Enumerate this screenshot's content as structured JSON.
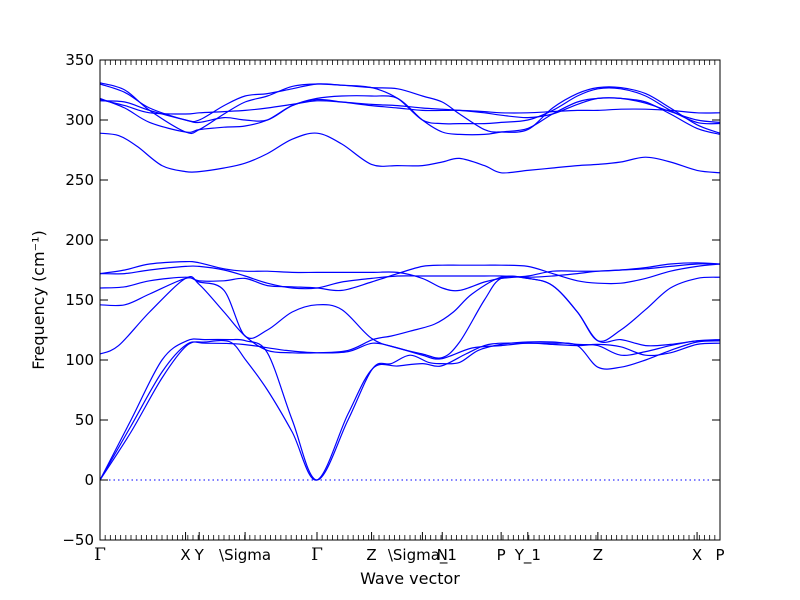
{
  "chart_data": {
    "type": "line",
    "xlabel": "Wave vector",
    "ylabel": "Frequency (cm⁻¹)",
    "ylim": [
      -50,
      350
    ],
    "yticks": [
      -50,
      0,
      50,
      100,
      150,
      200,
      250,
      300,
      350
    ],
    "xlim": [
      0,
      100
    ],
    "xtick_labels": [
      {
        "label": "Γ",
        "x": 0
      },
      {
        "label": "X",
        "x": 13.8
      },
      {
        "label": "Y",
        "x": 16.0
      },
      {
        "label": "\\Sigma",
        "x": 23.4
      },
      {
        "label": "Γ",
        "x": 35.0
      },
      {
        "label": "Z",
        "x": 43.8
      },
      {
        "label": "\\Sigma_1",
        "x": 52.0
      },
      {
        "label": "N",
        "x": 55.2
      },
      {
        "label": "P",
        "x": 64.7
      },
      {
        "label": "Y_1",
        "x": 69.0
      },
      {
        "label": "Z",
        "x": 80.3
      },
      {
        "label": "X",
        "x": 96.3
      },
      {
        "label": "P",
        "x": 100
      }
    ],
    "zero_line": true,
    "series_color": "#0000ff",
    "series": [
      {
        "x": [
          0,
          5,
          10,
          14,
          17,
          23,
          30,
          35,
          40,
          44,
          48,
          52,
          55,
          60,
          64.7,
          69,
          73,
          77,
          80.3,
          84,
          88,
          92,
          96.3,
          100
        ],
        "values": [
          0,
          45,
          90,
          113,
          114,
          113,
          108,
          106,
          107,
          114,
          110,
          104,
          101,
          110,
          112,
          114,
          113,
          112,
          113,
          111,
          104,
          106,
          113,
          114
        ]
      },
      {
        "x": [
          0,
          5,
          10,
          14,
          17,
          21,
          23.5,
          27,
          31,
          35,
          40,
          44,
          47,
          50,
          53,
          55,
          58,
          61,
          64.7,
          69,
          73,
          77,
          80.3,
          84,
          88,
          92,
          96.3,
          100
        ],
        "values": [
          0,
          50,
          100,
          116,
          117,
          117,
          116,
          106,
          50,
          0,
          50,
          93,
          97,
          104,
          98,
          97,
          98,
          108,
          113,
          115,
          115,
          113,
          112,
          104,
          107,
          112,
          116,
          116
        ]
      },
      {
        "x": [
          0,
          5,
          10,
          14,
          17,
          21,
          23.5,
          27,
          31,
          35,
          40,
          44,
          48,
          52,
          55,
          59,
          62,
          64.7,
          69,
          73,
          77,
          80.3,
          84,
          88,
          92,
          96.3,
          100
        ],
        "values": [
          0,
          40,
          85,
          112,
          115,
          115,
          100,
          75,
          40,
          0,
          55,
          93,
          95,
          97,
          95,
          105,
          112,
          114,
          114,
          114,
          112,
          94,
          94,
          100,
          108,
          115,
          116
        ]
      },
      {
        "x": [
          0,
          3,
          8,
          13.8,
          16,
          20,
          23.4,
          27,
          31,
          35,
          40,
          44,
          47,
          50,
          54,
          57,
          60,
          64.7,
          69,
          73,
          77,
          80.3,
          84,
          88,
          92,
          96.3,
          100
        ],
        "values": [
          105,
          112,
          140,
          168,
          163,
          140,
          120,
          108,
          106,
          106,
          108,
          117,
          120,
          124,
          130,
          140,
          155,
          169,
          168,
          162,
          140,
          116,
          117,
          112,
          113,
          116,
          117
        ]
      },
      {
        "x": [
          0,
          4,
          8,
          13.8,
          16,
          20,
          23.4,
          27,
          31,
          35,
          39,
          43.8,
          48,
          52,
          55.2,
          58,
          62,
          64.7,
          69,
          73,
          77,
          80.3,
          84,
          88,
          92,
          96.3,
          100
        ],
        "values": [
          146,
          146,
          155,
          168,
          165,
          158,
          120,
          125,
          140,
          146,
          142,
          118,
          110,
          105,
          102,
          115,
          150,
          168,
          168,
          162,
          140,
          116,
          125,
          142,
          160,
          168,
          169
        ]
      },
      {
        "x": [
          0,
          4,
          8,
          13.8,
          16,
          20,
          23.4,
          27,
          31,
          35,
          39,
          43.8,
          48,
          52,
          55.2,
          58,
          62,
          64.7,
          69,
          73,
          77,
          80.3,
          84,
          88,
          92,
          96.3,
          100
        ],
        "values": [
          160,
          161,
          166,
          169,
          166,
          166,
          168,
          162,
          161,
          160,
          158,
          165,
          172,
          178,
          179,
          179,
          179,
          179,
          178,
          172,
          166,
          164,
          164,
          168,
          174,
          178,
          180
        ]
      },
      {
        "x": [
          0,
          4,
          8,
          13.8,
          16,
          20,
          23.4,
          27,
          31,
          35,
          39,
          43.8,
          48,
          52,
          55.2,
          58,
          62,
          64.7,
          69,
          73,
          77,
          80.3,
          84,
          88,
          92,
          96.3,
          100
        ],
        "values": [
          172,
          175,
          180,
          182,
          181,
          176,
          174,
          174,
          173,
          173,
          173,
          173,
          173,
          168,
          160,
          158,
          165,
          168,
          170,
          174,
          174,
          174,
          175,
          177,
          180,
          181,
          180
        ]
      },
      {
        "x": [
          0,
          4,
          8,
          13.8,
          16,
          20,
          23.4,
          27,
          31,
          35,
          39,
          43.8,
          48,
          52,
          55.2,
          58,
          62,
          64.7,
          69,
          73,
          77,
          80.3,
          84,
          88,
          92,
          96.3,
          100
        ],
        "values": [
          172,
          172,
          175,
          178,
          178,
          175,
          170,
          164,
          160,
          160,
          165,
          168,
          170,
          170,
          170,
          170,
          170,
          170,
          169,
          170,
          172,
          174,
          175,
          176,
          178,
          180,
          180
        ]
      },
      {
        "x": [
          0,
          3,
          6,
          10,
          13.8,
          16,
          20,
          23.4,
          27,
          31,
          35,
          39,
          43.8,
          48,
          52,
          55.2,
          58,
          62,
          64.7,
          69,
          73,
          77,
          80.3,
          84,
          88,
          92,
          96.3,
          100
        ],
        "values": [
          289,
          287,
          278,
          262,
          257,
          257,
          260,
          264,
          272,
          284,
          289,
          280,
          263,
          262,
          262,
          265,
          268,
          262,
          256,
          258,
          260,
          262,
          263,
          265,
          269,
          265,
          258,
          256
        ]
      },
      {
        "x": [
          0,
          4,
          8,
          13.8,
          16,
          20,
          23.4,
          27,
          31,
          35,
          39,
          43.8,
          48,
          52,
          55.2,
          58,
          62,
          64.7,
          69,
          73,
          77,
          80.3,
          84,
          88,
          92,
          96.3,
          100
        ],
        "values": [
          318,
          310,
          298,
          290,
          292,
          294,
          295,
          300,
          312,
          317,
          315,
          312,
          310,
          308,
          308,
          308,
          307,
          306,
          306,
          307,
          308,
          308,
          309,
          309,
          308,
          306,
          306
        ]
      },
      {
        "x": [
          0,
          4,
          8,
          13.8,
          16,
          20,
          23.4,
          27,
          31,
          35,
          39,
          43.8,
          48,
          52,
          55.2,
          58,
          62,
          64.7,
          69,
          73,
          77,
          80.3,
          84,
          88,
          92,
          96.3,
          100
        ],
        "values": [
          317,
          312,
          306,
          305,
          306,
          307,
          308,
          310,
          313,
          316,
          315,
          313,
          312,
          310,
          309,
          308,
          306,
          304,
          302,
          305,
          313,
          318,
          318,
          314,
          307,
          300,
          298
        ]
      },
      {
        "x": [
          0,
          4,
          8,
          13.8,
          16,
          20,
          23.4,
          27,
          31,
          35,
          39,
          43.8,
          48,
          52,
          55.2,
          58,
          62,
          64.7,
          69,
          73,
          77,
          80.3,
          84,
          88,
          92,
          96.3,
          100
        ],
        "values": [
          331,
          325,
          308,
          290,
          292,
          305,
          315,
          320,
          328,
          330,
          329,
          327,
          318,
          300,
          297,
          297,
          297,
          298,
          300,
          308,
          320,
          326,
          326,
          320,
          308,
          298,
          297
        ]
      },
      {
        "x": [
          0,
          4,
          8,
          13.8,
          16,
          20,
          23.4,
          27,
          31,
          35,
          39,
          43.8,
          48,
          52,
          55.2,
          58,
          62,
          64.7,
          69,
          73,
          77,
          80.3,
          84,
          88,
          92,
          96.3,
          100
        ],
        "values": [
          330,
          323,
          310,
          300,
          300,
          312,
          320,
          322,
          326,
          330,
          329,
          327,
          326,
          320,
          315,
          305,
          292,
          290,
          292,
          310,
          322,
          327,
          327,
          322,
          310,
          296,
          289
        ]
      },
      {
        "x": [
          0,
          4,
          8,
          13.8,
          16,
          20,
          23.4,
          27,
          31,
          35,
          39,
          43.8,
          48,
          52,
          55.2,
          58,
          62,
          64.7,
          69,
          73,
          77,
          80.3,
          84,
          88,
          92,
          96.3,
          100
        ],
        "values": [
          316,
          315,
          308,
          300,
          298,
          302,
          300,
          300,
          312,
          318,
          320,
          320,
          318,
          300,
          290,
          288,
          288,
          290,
          293,
          305,
          315,
          318,
          318,
          315,
          305,
          293,
          288
        ]
      }
    ]
  }
}
